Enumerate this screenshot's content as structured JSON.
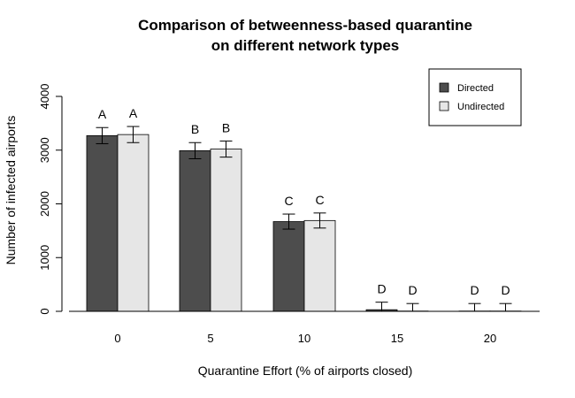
{
  "chart_data": {
    "type": "bar",
    "title": [
      "Comparison of betweenness-based quarantine",
      "on different network types"
    ],
    "xlabel": "Quarantine Effort (% of airports closed)",
    "ylabel": "Number of infected airports",
    "categories": [
      "0",
      "5",
      "10",
      "15",
      "20"
    ],
    "ylim": [
      0,
      4000
    ],
    "yticks": [
      0,
      1000,
      2000,
      3000,
      4000
    ],
    "series": [
      {
        "name": "Directed",
        "color": "#4d4d4d",
        "values": [
          3270,
          2990,
          1670,
          30,
          5
        ],
        "error": [
          150,
          150,
          140,
          140,
          140
        ],
        "letters": [
          "A",
          "B",
          "C",
          "D",
          "D"
        ]
      },
      {
        "name": "Undirected",
        "color": "#e6e6e6",
        "values": [
          3290,
          3020,
          1690,
          5,
          5
        ],
        "error": [
          150,
          150,
          140,
          140,
          140
        ],
        "letters": [
          "A",
          "B",
          "C",
          "D",
          "D"
        ]
      }
    ],
    "legend_position": "top-right",
    "grid": false
  }
}
